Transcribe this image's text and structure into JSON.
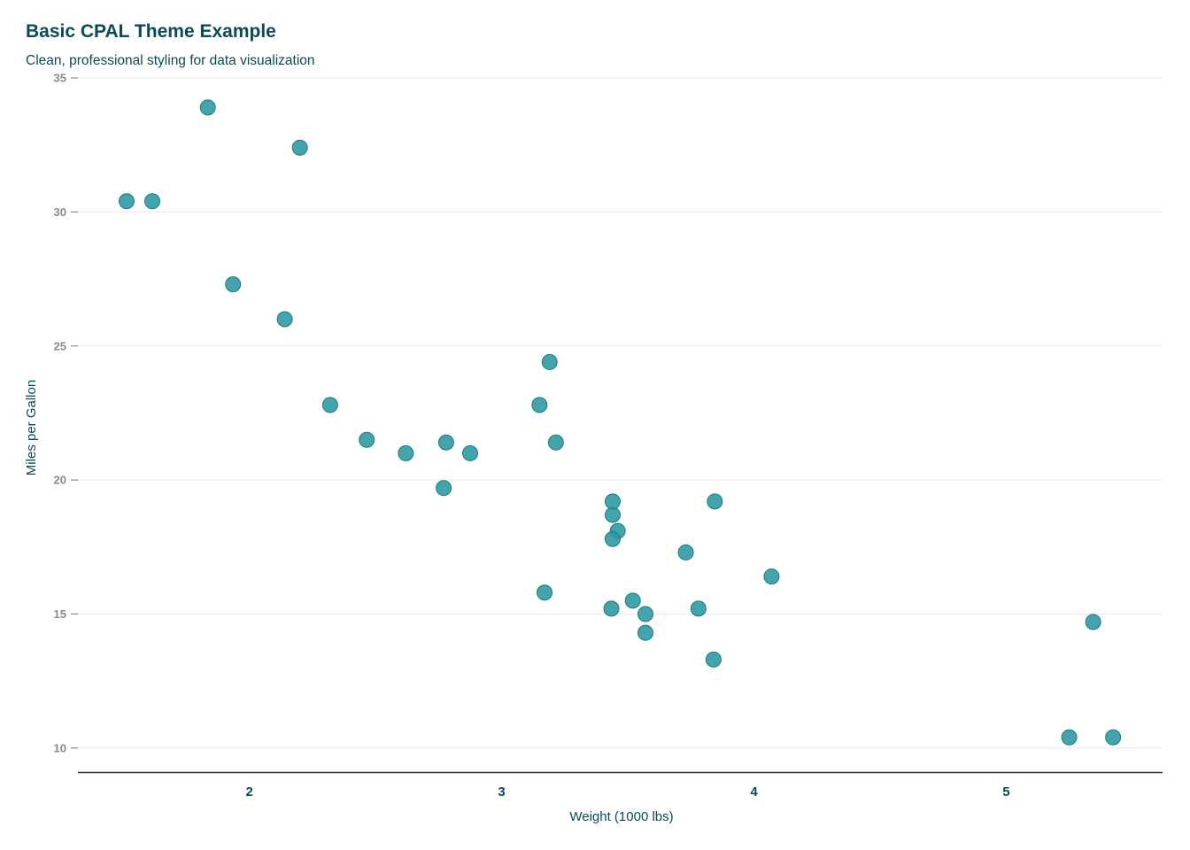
{
  "title": "Basic CPAL Theme Example",
  "subtitle": "Clean, professional styling for data visualization",
  "colors": {
    "point_fill": "#2a97a1",
    "point_stroke": "#1b7c86",
    "title": "#0b4a57",
    "grid": "#e8e8e8",
    "axis": "#333333",
    "ytick": "#8a8a8a"
  },
  "chart_data": {
    "type": "scatter",
    "title": "Basic CPAL Theme Example",
    "subtitle": "Clean, professional styling for data visualization",
    "xlabel": "Weight (1000 lbs)",
    "ylabel": "Miles per Gallon",
    "xlim": [
      1.32,
      5.62
    ],
    "ylim": [
      9.3,
      35.2
    ],
    "x_ticks": [
      2,
      3,
      4,
      5
    ],
    "y_ticks": [
      10,
      15,
      20,
      25,
      30,
      35
    ],
    "grid": "horizontal",
    "legend": "none",
    "x": [
      2.62,
      2.875,
      2.32,
      3.215,
      3.44,
      3.46,
      3.57,
      3.19,
      3.15,
      3.44,
      3.44,
      4.07,
      3.73,
      3.78,
      5.25,
      5.424,
      5.345,
      2.2,
      1.615,
      1.835,
      2.465,
      3.52,
      3.435,
      3.84,
      3.845,
      1.935,
      2.14,
      1.513,
      3.17,
      2.77,
      3.57,
      2.78
    ],
    "y": [
      21.0,
      21.0,
      22.8,
      21.4,
      18.7,
      18.1,
      14.3,
      24.4,
      22.8,
      19.2,
      17.8,
      16.4,
      17.3,
      15.2,
      10.4,
      10.4,
      14.7,
      32.4,
      30.4,
      33.9,
      21.5,
      15.5,
      15.2,
      13.3,
      19.2,
      27.3,
      26.0,
      30.4,
      15.8,
      19.7,
      15.0,
      21.4
    ]
  }
}
